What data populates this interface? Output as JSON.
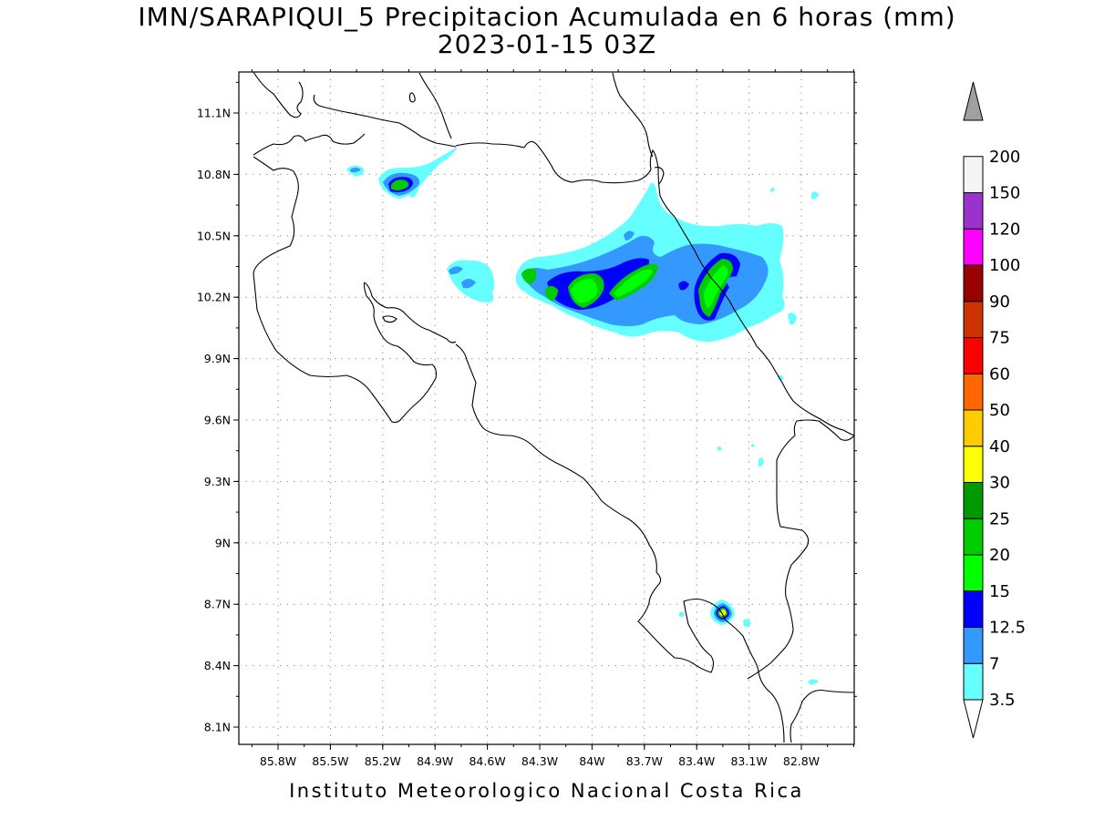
{
  "title": {
    "line1": "IMN/SARAPIQUI_5 Precipitacion Acumulada en 6 horas (mm)",
    "line2": "2023-01-15 03Z"
  },
  "footer": "Instituto Meteorologico Nacional Costa Rica",
  "map": {
    "lat_labels": [
      "11.1N",
      "10.8N",
      "10.5N",
      "10.2N",
      "9.9N",
      "9.6N",
      "9.3N",
      "9N",
      "8.7N",
      "8.4N",
      "8.1N"
    ],
    "lon_labels": [
      "85.8W",
      "85.5W",
      "85.2W",
      "84.9W",
      "84.6W",
      "84.3W",
      "84W",
      "83.7W",
      "83.4W",
      "83.1W",
      "82.8W"
    ],
    "grid": "dotted",
    "coastline_color": "#000000"
  },
  "legend": {
    "bins": [
      {
        "label": "3.5",
        "color": "#66ffff"
      },
      {
        "label": "7",
        "color": "#3399ff"
      },
      {
        "label": "12.5",
        "color": "#0000ff"
      },
      {
        "label": "15",
        "color": "#00ff00"
      },
      {
        "label": "20",
        "color": "#00cc00"
      },
      {
        "label": "25",
        "color": "#009900"
      },
      {
        "label": "30",
        "color": "#ffff00"
      },
      {
        "label": "40",
        "color": "#ffcc00"
      },
      {
        "label": "50",
        "color": "#ff6600"
      },
      {
        "label": "60",
        "color": "#ff0000"
      },
      {
        "label": "75",
        "color": "#cc3300"
      },
      {
        "label": "90",
        "color": "#990000"
      },
      {
        "label": "100",
        "color": "#ff00ff"
      },
      {
        "label": "120",
        "color": "#9933cc"
      },
      {
        "label": "150",
        "color": "#f5f5f5"
      },
      {
        "label": "200",
        "color": "#a0a0a0"
      }
    ]
  }
}
